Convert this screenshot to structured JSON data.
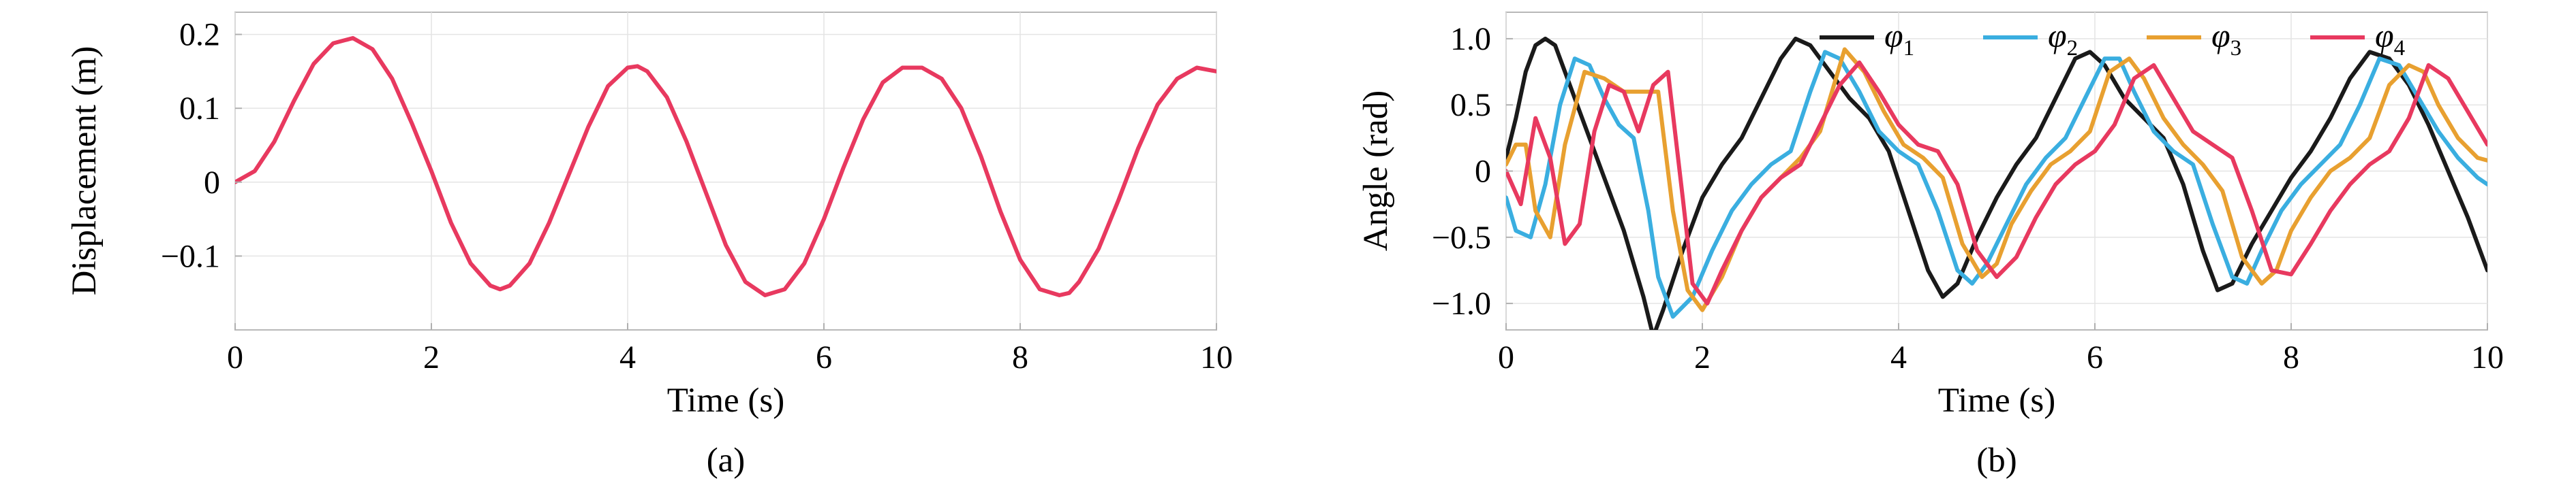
{
  "chart_data": [
    {
      "type": "line",
      "panel_label": "(a)",
      "xlabel": "Time (s)",
      "ylabel": "Displacement (m)",
      "xlim": [
        0,
        10
      ],
      "ylim": [
        -0.2,
        0.23
      ],
      "xticks": [
        0,
        2,
        4,
        6,
        8,
        10
      ],
      "xtick_labels": [
        "0",
        "2",
        "4",
        "6",
        "8",
        "10"
      ],
      "yticks": [
        -0.1,
        0,
        0.1,
        0.2
      ],
      "ytick_labels": [
        "−0.1",
        "0",
        "0.1",
        "0.2"
      ],
      "grid": true,
      "series": [
        {
          "color": "#e8395f",
          "x": [
            0,
            0.2,
            0.4,
            0.6,
            0.8,
            1.0,
            1.2,
            1.4,
            1.6,
            1.8,
            2.0,
            2.2,
            2.4,
            2.6,
            2.7,
            2.8,
            3.0,
            3.2,
            3.4,
            3.6,
            3.8,
            4.0,
            4.1,
            4.2,
            4.4,
            4.6,
            4.8,
            5.0,
            5.2,
            5.4,
            5.6,
            5.8,
            6.0,
            6.2,
            6.4,
            6.6,
            6.8,
            7.0,
            7.2,
            7.4,
            7.6,
            7.8,
            8.0,
            8.2,
            8.4,
            8.5,
            8.6,
            8.8,
            9.0,
            9.2,
            9.4,
            9.6,
            9.8,
            10.0
          ],
          "y": [
            0.0,
            0.015,
            0.055,
            0.11,
            0.16,
            0.188,
            0.195,
            0.18,
            0.14,
            0.08,
            0.015,
            -0.055,
            -0.11,
            -0.14,
            -0.145,
            -0.14,
            -0.11,
            -0.055,
            0.01,
            0.075,
            0.13,
            0.155,
            0.157,
            0.15,
            0.115,
            0.055,
            -0.015,
            -0.085,
            -0.135,
            -0.153,
            -0.145,
            -0.11,
            -0.05,
            0.02,
            0.085,
            0.135,
            0.155,
            0.155,
            0.14,
            0.1,
            0.035,
            -0.04,
            -0.105,
            -0.145,
            -0.153,
            -0.15,
            -0.135,
            -0.09,
            -0.025,
            0.045,
            0.105,
            0.14,
            0.155,
            0.15
          ]
        }
      ]
    },
    {
      "type": "line",
      "panel_label": "(b)",
      "xlabel": "Time (s)",
      "ylabel": "Angle (rad)",
      "xlim": [
        0,
        10
      ],
      "ylim": [
        -1.2,
        1.2
      ],
      "xticks": [
        0,
        2,
        4,
        6,
        8,
        10
      ],
      "xtick_labels": [
        "0",
        "2",
        "4",
        "6",
        "8",
        "10"
      ],
      "yticks": [
        -1.0,
        -0.5,
        0,
        0.5,
        1.0
      ],
      "ytick_labels": [
        "−1.0",
        "−0.5",
        "0",
        "0.5",
        "1.0"
      ],
      "grid": true,
      "legend_position": "top-right",
      "series": [
        {
          "name": "φ",
          "subscript": "1",
          "color": "#1a1a1a",
          "x": [
            0,
            0.1,
            0.2,
            0.3,
            0.4,
            0.5,
            0.6,
            0.8,
            1.0,
            1.2,
            1.4,
            1.5,
            1.6,
            1.8,
            2.0,
            2.2,
            2.4,
            2.6,
            2.8,
            2.95,
            3.1,
            3.3,
            3.5,
            3.7,
            3.9,
            4.1,
            4.3,
            4.45,
            4.6,
            4.8,
            5.0,
            5.2,
            5.4,
            5.6,
            5.8,
            5.95,
            6.1,
            6.3,
            6.5,
            6.7,
            6.9,
            7.1,
            7.25,
            7.4,
            7.6,
            7.8,
            8.0,
            8.2,
            8.4,
            8.6,
            8.8,
            9.0,
            9.2,
            9.4,
            9.6,
            9.8,
            10.0
          ],
          "y": [
            0.1,
            0.4,
            0.75,
            0.95,
            1.0,
            0.95,
            0.75,
            0.35,
            -0.05,
            -0.45,
            -0.95,
            -1.25,
            -1.05,
            -0.6,
            -0.2,
            0.05,
            0.25,
            0.55,
            0.85,
            1.0,
            0.95,
            0.75,
            0.55,
            0.4,
            0.15,
            -0.3,
            -0.75,
            -0.95,
            -0.85,
            -0.5,
            -0.2,
            0.05,
            0.25,
            0.55,
            0.85,
            0.9,
            0.8,
            0.55,
            0.4,
            0.25,
            -0.1,
            -0.6,
            -0.9,
            -0.85,
            -0.55,
            -0.3,
            -0.05,
            0.15,
            0.4,
            0.7,
            0.9,
            0.85,
            0.65,
            0.35,
            0.0,
            -0.35,
            -0.75
          ]
        },
        {
          "name": "φ",
          "subscript": "2",
          "color": "#3aaee0",
          "x": [
            0,
            0.1,
            0.25,
            0.4,
            0.55,
            0.7,
            0.85,
            1.0,
            1.15,
            1.3,
            1.45,
            1.55,
            1.7,
            1.9,
            2.1,
            2.3,
            2.5,
            2.7,
            2.9,
            3.1,
            3.25,
            3.4,
            3.6,
            3.8,
            4.0,
            4.2,
            4.4,
            4.6,
            4.75,
            4.9,
            5.1,
            5.3,
            5.5,
            5.7,
            5.9,
            6.1,
            6.25,
            6.4,
            6.6,
            6.8,
            7.0,
            7.2,
            7.4,
            7.55,
            7.7,
            7.9,
            8.1,
            8.3,
            8.5,
            8.7,
            8.9,
            9.1,
            9.3,
            9.5,
            9.7,
            9.9,
            10.0
          ],
          "y": [
            -0.2,
            -0.45,
            -0.5,
            -0.1,
            0.5,
            0.85,
            0.8,
            0.55,
            0.35,
            0.25,
            -0.3,
            -0.8,
            -1.1,
            -0.95,
            -0.6,
            -0.3,
            -0.1,
            0.05,
            0.15,
            0.6,
            0.9,
            0.85,
            0.6,
            0.3,
            0.15,
            0.05,
            -0.3,
            -0.75,
            -0.85,
            -0.7,
            -0.4,
            -0.1,
            0.1,
            0.25,
            0.55,
            0.85,
            0.85,
            0.6,
            0.3,
            0.15,
            0.05,
            -0.4,
            -0.8,
            -0.85,
            -0.6,
            -0.3,
            -0.1,
            0.05,
            0.2,
            0.5,
            0.85,
            0.8,
            0.55,
            0.3,
            0.1,
            -0.05,
            -0.1
          ]
        },
        {
          "name": "φ",
          "subscript": "3",
          "color": "#e8a030",
          "x": [
            0,
            0.1,
            0.2,
            0.3,
            0.45,
            0.6,
            0.8,
            1.0,
            1.2,
            1.4,
            1.55,
            1.7,
            1.85,
            2.0,
            2.2,
            2.4,
            2.6,
            2.8,
            3.0,
            3.2,
            3.45,
            3.65,
            3.85,
            4.05,
            4.25,
            4.45,
            4.65,
            4.85,
            5.0,
            5.15,
            5.35,
            5.55,
            5.75,
            5.95,
            6.15,
            6.35,
            6.5,
            6.7,
            6.9,
            7.1,
            7.3,
            7.5,
            7.7,
            7.85,
            8.0,
            8.2,
            8.4,
            8.6,
            8.8,
            9.0,
            9.2,
            9.35,
            9.5,
            9.7,
            9.9,
            10.0
          ],
          "y": [
            0.05,
            0.2,
            0.2,
            -0.3,
            -0.5,
            0.2,
            0.75,
            0.7,
            0.6,
            0.6,
            0.6,
            -0.3,
            -0.9,
            -1.05,
            -0.8,
            -0.45,
            -0.2,
            -0.05,
            0.1,
            0.3,
            0.92,
            0.75,
            0.45,
            0.2,
            0.1,
            -0.05,
            -0.55,
            -0.8,
            -0.7,
            -0.4,
            -0.15,
            0.05,
            0.15,
            0.3,
            0.75,
            0.85,
            0.7,
            0.4,
            0.2,
            0.05,
            -0.15,
            -0.65,
            -0.85,
            -0.75,
            -0.45,
            -0.2,
            0.0,
            0.1,
            0.25,
            0.65,
            0.8,
            0.75,
            0.5,
            0.25,
            0.1,
            0.08
          ]
        },
        {
          "name": "φ",
          "subscript": "4",
          "color": "#e8395f",
          "x": [
            0,
            0.15,
            0.3,
            0.45,
            0.6,
            0.75,
            0.9,
            1.05,
            1.2,
            1.35,
            1.5,
            1.65,
            1.8,
            1.9,
            2.05,
            2.2,
            2.4,
            2.6,
            2.8,
            3.0,
            3.2,
            3.4,
            3.6,
            3.8,
            4.0,
            4.2,
            4.4,
            4.6,
            4.8,
            5.0,
            5.2,
            5.4,
            5.6,
            5.8,
            6.0,
            6.2,
            6.4,
            6.6,
            6.8,
            7.0,
            7.2,
            7.4,
            7.6,
            7.8,
            8.0,
            8.2,
            8.4,
            8.6,
            8.8,
            9.0,
            9.2,
            9.4,
            9.6,
            9.8,
            10.0
          ],
          "y": [
            0.0,
            -0.25,
            0.4,
            0.1,
            -0.55,
            -0.4,
            0.3,
            0.65,
            0.6,
            0.3,
            0.65,
            0.75,
            -0.2,
            -0.85,
            -1.0,
            -0.75,
            -0.45,
            -0.2,
            -0.05,
            0.05,
            0.35,
            0.65,
            0.82,
            0.6,
            0.35,
            0.2,
            0.15,
            -0.1,
            -0.6,
            -0.8,
            -0.65,
            -0.35,
            -0.1,
            0.05,
            0.15,
            0.35,
            0.7,
            0.8,
            0.55,
            0.3,
            0.2,
            0.1,
            -0.3,
            -0.75,
            -0.78,
            -0.55,
            -0.3,
            -0.1,
            0.05,
            0.15,
            0.4,
            0.8,
            0.7,
            0.45,
            0.2
          ]
        }
      ]
    }
  ]
}
